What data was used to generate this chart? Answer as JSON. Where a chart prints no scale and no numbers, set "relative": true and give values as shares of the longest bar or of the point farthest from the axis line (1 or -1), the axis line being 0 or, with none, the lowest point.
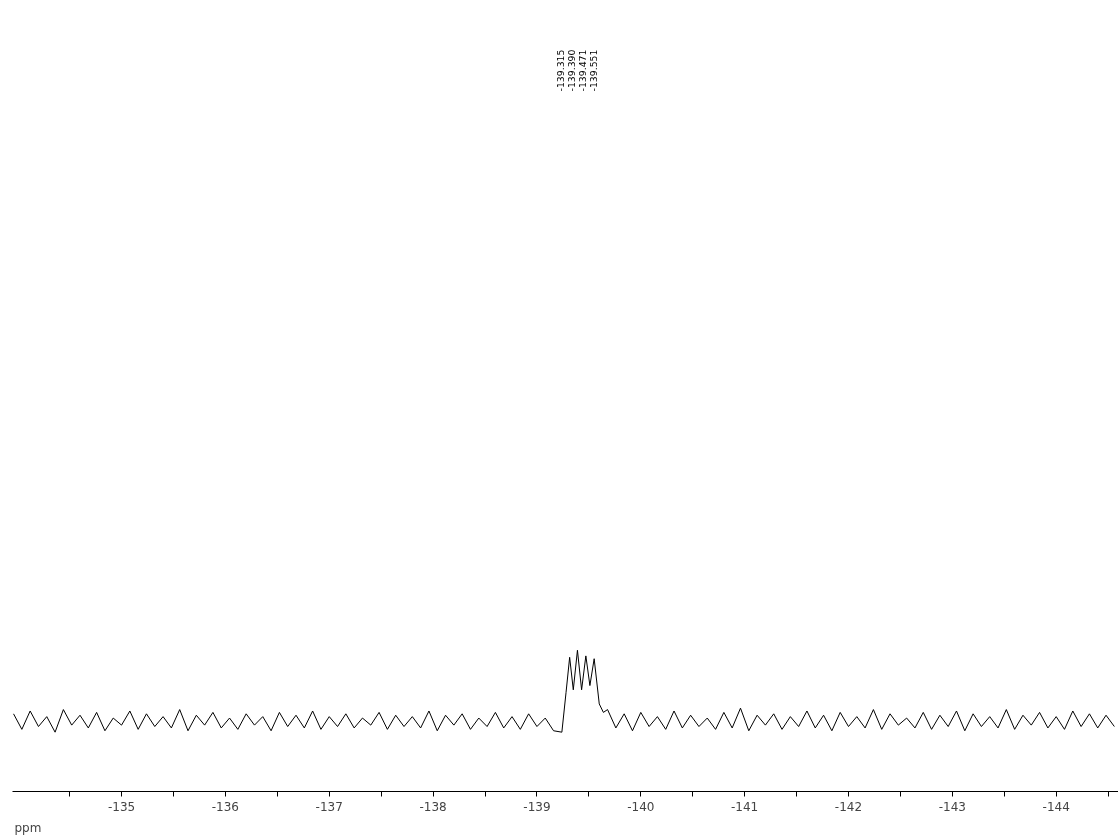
{
  "chart_data": {
    "type": "line",
    "relative": true,
    "xlabel": "ppm",
    "color": "#000000",
    "grid": false,
    "xlim": [
      -133.95,
      -144.6
    ],
    "xticks": [
      {
        "value": -134.5,
        "label": null
      },
      -135,
      {
        "value": -135.5,
        "label": null
      },
      -136,
      {
        "value": -136.5,
        "label": null
      },
      -137,
      {
        "value": -137.5,
        "label": null
      },
      -138,
      {
        "value": -138.5,
        "label": null
      },
      -139,
      {
        "value": -139.5,
        "label": null
      },
      -140,
      {
        "value": -140.5,
        "label": null
      },
      -141,
      {
        "value": -141.5,
        "label": null
      },
      -142,
      {
        "value": -142.5,
        "label": null
      },
      -143,
      {
        "value": -143.5,
        "label": null
      },
      -144,
      {
        "value": -144.5,
        "label": null
      }
    ],
    "annotations": [
      "-139.315",
      "-139.390",
      "-139.471",
      "-139.551"
    ],
    "x": [
      -133.96,
      -134.04,
      -134.12,
      -134.2,
      -134.28,
      -134.36,
      -134.44,
      -134.52,
      -134.6,
      -134.68,
      -134.76,
      -134.84,
      -134.92,
      -135.0,
      -135.08,
      -135.16,
      -135.24,
      -135.32,
      -135.4,
      -135.48,
      -135.56,
      -135.64,
      -135.72,
      -135.8,
      -135.88,
      -135.96,
      -136.04,
      -136.12,
      -136.2,
      -136.28,
      -136.36,
      -136.44,
      -136.52,
      -136.6,
      -136.68,
      -136.76,
      -136.84,
      -136.92,
      -137.0,
      -137.08,
      -137.16,
      -137.24,
      -137.32,
      -137.4,
      -137.48,
      -137.56,
      -137.64,
      -137.72,
      -137.8,
      -137.88,
      -137.96,
      -138.04,
      -138.12,
      -138.2,
      -138.28,
      -138.36,
      -138.44,
      -138.52,
      -138.6,
      -138.68,
      -138.76,
      -138.84,
      -138.92,
      -139.0,
      -139.08,
      -139.16,
      -139.24,
      -139.28,
      -139.315,
      -139.35,
      -139.39,
      -139.43,
      -139.471,
      -139.51,
      -139.551,
      -139.6,
      -139.64,
      -139.68,
      -139.76,
      -139.84,
      -139.92,
      -140.0,
      -140.08,
      -140.16,
      -140.24,
      -140.32,
      -140.4,
      -140.48,
      -140.56,
      -140.64,
      -140.72,
      -140.8,
      -140.88,
      -140.96,
      -141.04,
      -141.12,
      -141.2,
      -141.28,
      -141.36,
      -141.44,
      -141.52,
      -141.6,
      -141.68,
      -141.76,
      -141.84,
      -141.92,
      -142.0,
      -142.08,
      -142.16,
      -142.24,
      -142.32,
      -142.4,
      -142.48,
      -142.56,
      -142.64,
      -142.72,
      -142.8,
      -142.88,
      -142.96,
      -143.04,
      -143.12,
      -143.2,
      -143.28,
      -143.36,
      -143.44,
      -143.52,
      -143.6,
      -143.68,
      -143.76,
      -143.84,
      -143.92,
      -144.0,
      -144.08,
      -144.16,
      -144.24,
      -144.32,
      -144.4,
      -144.48,
      -144.56
    ],
    "values": [
      0.55,
      0.44,
      0.57,
      0.46,
      0.53,
      0.42,
      0.58,
      0.47,
      0.54,
      0.45,
      0.56,
      0.43,
      0.52,
      0.47,
      0.57,
      0.44,
      0.55,
      0.46,
      0.53,
      0.45,
      0.58,
      0.43,
      0.54,
      0.47,
      0.56,
      0.45,
      0.52,
      0.44,
      0.55,
      0.47,
      0.53,
      0.43,
      0.56,
      0.46,
      0.54,
      0.45,
      0.57,
      0.44,
      0.53,
      0.46,
      0.55,
      0.45,
      0.52,
      0.47,
      0.56,
      0.44,
      0.54,
      0.46,
      0.53,
      0.45,
      0.57,
      0.43,
      0.54,
      0.47,
      0.55,
      0.44,
      0.52,
      0.46,
      0.56,
      0.45,
      0.53,
      0.44,
      0.55,
      0.46,
      0.52,
      0.43,
      0.42,
      0.7,
      0.95,
      0.72,
      1.0,
      0.72,
      0.96,
      0.75,
      0.94,
      0.62,
      0.56,
      0.58,
      0.45,
      0.55,
      0.43,
      0.56,
      0.46,
      0.53,
      0.44,
      0.57,
      0.45,
      0.54,
      0.46,
      0.52,
      0.44,
      0.56,
      0.45,
      0.59,
      0.43,
      0.54,
      0.47,
      0.55,
      0.44,
      0.53,
      0.46,
      0.57,
      0.45,
      0.54,
      0.43,
      0.56,
      0.46,
      0.53,
      0.45,
      0.58,
      0.44,
      0.55,
      0.47,
      0.52,
      0.45,
      0.56,
      0.44,
      0.54,
      0.46,
      0.57,
      0.43,
      0.55,
      0.46,
      0.53,
      0.45,
      0.58,
      0.44,
      0.54,
      0.47,
      0.56,
      0.45,
      0.53,
      0.44,
      0.57,
      0.46,
      0.55,
      0.45,
      0.54,
      0.46
    ]
  }
}
